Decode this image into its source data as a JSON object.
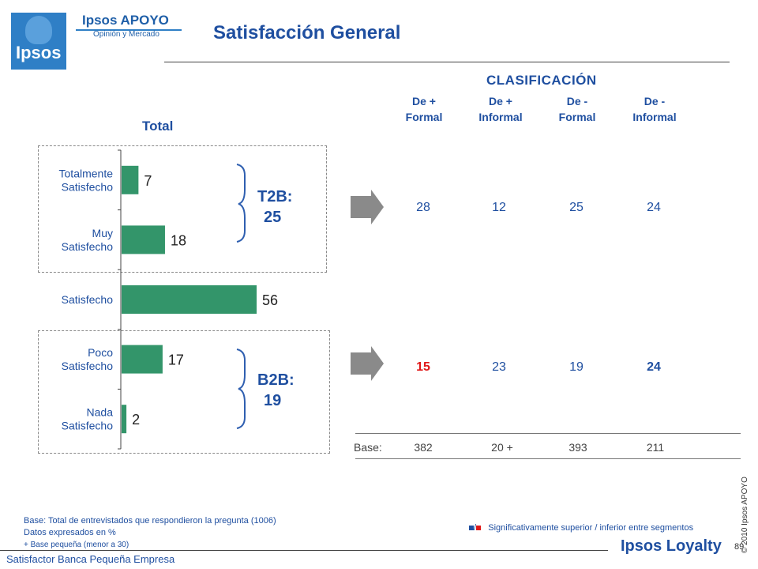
{
  "brand": {
    "logo_word": "Ipsos",
    "name": "Ipsos APOYO",
    "subname": "Opinión y Mercado",
    "footer_brand": "Ipsos Loyalty"
  },
  "page": {
    "title": "Satisfacción General",
    "footer_title": "Satisfactor Banca Pequeña Empresa",
    "page_number": "89",
    "copyright": "© 2010 Ipsos APOYO"
  },
  "classification": {
    "title": "CLASIFICACIÓN",
    "segments": [
      {
        "line1": "De +",
        "line2": "Formal"
      },
      {
        "line1": "De +",
        "line2": "Informal"
      },
      {
        "line1": "De -",
        "line2": "Formal"
      },
      {
        "line1": "De  -",
        "line2": "Informal"
      }
    ],
    "t2b": [
      "28",
      "12",
      "25",
      "24"
    ],
    "b2b": [
      "15",
      "23",
      "19",
      "24"
    ],
    "base_label": "Base:",
    "base": [
      "382",
      "20 +",
      "393",
      "211"
    ]
  },
  "chart_data": {
    "type": "bar",
    "orientation": "horizontal",
    "title": "Total",
    "categories": [
      [
        "Totalmente",
        "Satisfecho"
      ],
      [
        "Muy",
        "Satisfecho"
      ],
      [
        "Satisfecho"
      ],
      [
        "Poco",
        "Satisfecho"
      ],
      [
        "Nada",
        "Satisfecho"
      ]
    ],
    "values": [
      7,
      18,
      56,
      17,
      2
    ],
    "data_labels": [
      "7",
      "18",
      "56",
      "17",
      "2"
    ],
    "bar_color": "#33956a",
    "grid": false,
    "legend": "none"
  },
  "summary": {
    "t2b_label": "T2B:",
    "t2b_value": "25",
    "b2b_label": "B2B:",
    "b2b_value": "19"
  },
  "footnotes": {
    "line1": "Base: Total de entrevistados que respondieron la pregunta (1006)",
    "line2": "Datos expresados en %",
    "line3": "+ Base pequeña (menor a 30)"
  },
  "legend": {
    "separator": "/",
    "text": "Significativamente superior / inferior entre segmentos",
    "color_superior": "#1f4fa0",
    "color_inferior": "#e01818"
  }
}
